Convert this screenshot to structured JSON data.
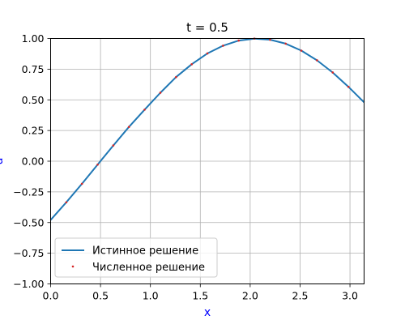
{
  "chart_data": {
    "type": "line",
    "title": "t = 0.5",
    "xlabel": "x",
    "ylabel": "u",
    "xlim": [
      0.0,
      3.14159
    ],
    "ylim": [
      -1.0,
      1.0
    ],
    "grid": true,
    "legend_position": "lower-left",
    "x_ticks": [
      0.0,
      0.5,
      1.0,
      1.5,
      2.0,
      2.5,
      3.0
    ],
    "x_tick_labels": [
      "0.0",
      "0.5",
      "1.0",
      "1.5",
      "2.0",
      "2.5",
      "3.0"
    ],
    "y_ticks": [
      -1.0,
      -0.75,
      -0.5,
      -0.25,
      0.0,
      0.25,
      0.5,
      0.75,
      1.0
    ],
    "y_tick_labels": [
      "−1.00",
      "−0.75",
      "−0.50",
      "−0.25",
      "0.00",
      "0.25",
      "0.50",
      "0.75",
      "1.00"
    ],
    "series": [
      {
        "name": "Истинное решение",
        "style": "line",
        "color": "#1f77b4",
        "x": [
          0.0,
          0.157,
          0.314,
          0.471,
          0.628,
          0.785,
          0.942,
          1.1,
          1.257,
          1.414,
          1.571,
          1.728,
          1.885,
          2.042,
          2.199,
          2.356,
          2.513,
          2.67,
          2.827,
          2.985,
          3.142
        ],
        "y": [
          -0.479,
          -0.335,
          -0.184,
          -0.028,
          0.128,
          0.279,
          0.42,
          0.558,
          0.685,
          0.79,
          0.878,
          0.941,
          0.983,
          0.999,
          0.99,
          0.958,
          0.901,
          0.822,
          0.723,
          0.606,
          0.479
        ]
      },
      {
        "name": "Численное решение",
        "style": "markers",
        "color": "#d62728",
        "x": [
          0.157,
          0.314,
          0.471,
          0.628,
          0.785,
          0.942,
          1.1,
          1.257,
          1.414,
          1.571,
          1.728,
          1.885,
          2.042,
          2.199,
          2.356,
          2.513,
          2.67,
          2.827,
          2.985
        ],
        "y": [
          -0.335,
          -0.184,
          -0.028,
          0.128,
          0.279,
          0.42,
          0.558,
          0.685,
          0.79,
          0.878,
          0.941,
          0.983,
          0.999,
          0.99,
          0.958,
          0.901,
          0.822,
          0.723,
          0.606
        ]
      }
    ]
  }
}
